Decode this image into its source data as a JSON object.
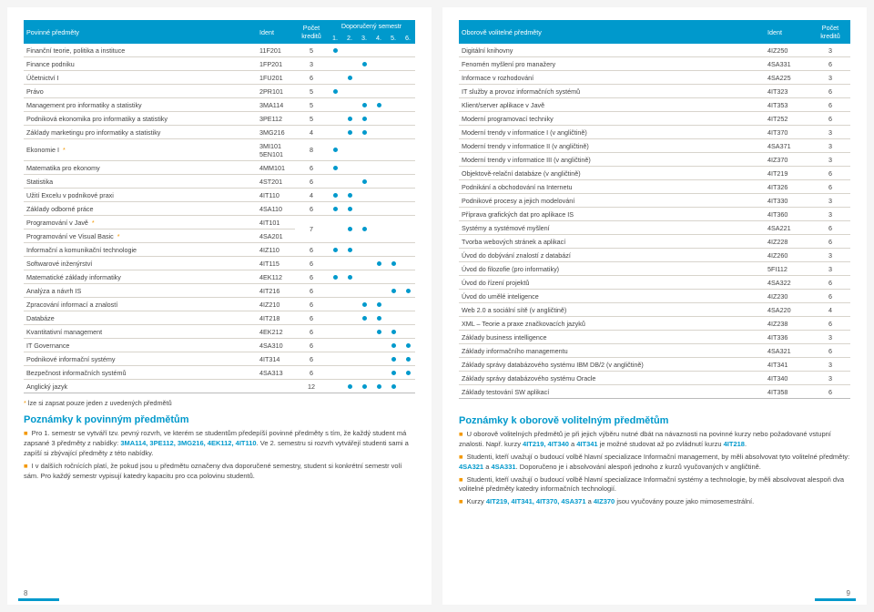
{
  "left": {
    "headers": {
      "subject": "Povinné předměty",
      "ident": "Ident",
      "credits": "Počet kreditů",
      "recommended": "Doporučený semestr",
      "sems": [
        "1.",
        "2.",
        "3.",
        "4.",
        "5.",
        "6."
      ]
    },
    "rows": [
      {
        "name": "Finanční teorie, politika a instituce",
        "ident": "11F201",
        "cr": "5",
        "s": [
          "●",
          "",
          "",
          "",
          "",
          ""
        ]
      },
      {
        "name": "Finance podniku",
        "ident": "1FP201",
        "cr": "3",
        "s": [
          "",
          "",
          "●",
          "",
          "",
          ""
        ]
      },
      {
        "name": "Účetnictví I",
        "ident": "1FU201",
        "cr": "6",
        "s": [
          "",
          "●",
          "",
          "",
          "",
          ""
        ]
      },
      {
        "name": "Právo",
        "ident": "2PR101",
        "cr": "5",
        "s": [
          "●",
          "",
          "",
          "",
          "",
          ""
        ]
      },
      {
        "name": "Management pro informatiky a statistiky",
        "ident": "3MA114",
        "cr": "5",
        "s": [
          "",
          "",
          "●",
          "●",
          "",
          ""
        ]
      },
      {
        "name": "Podniková ekonomika pro informatiky a statistiky",
        "ident": "3PE112",
        "cr": "5",
        "s": [
          "",
          "●",
          "●",
          "",
          "",
          ""
        ]
      },
      {
        "name": "Základy marketingu pro informatiky a statistiky",
        "ident": "3MG216",
        "cr": "4",
        "s": [
          "",
          "●",
          "●",
          "",
          "",
          ""
        ]
      },
      {
        "name": "Ekonomie I *",
        "ident": "3MI101\n5EN101",
        "cr": "8",
        "s": [
          "●",
          "",
          "",
          "",
          "",
          ""
        ]
      },
      {
        "name": "Matematika pro ekonomy",
        "ident": "4MM101",
        "cr": "6",
        "s": [
          "●",
          "",
          "",
          "",
          "",
          ""
        ]
      },
      {
        "name": "Statistika",
        "ident": "4ST201",
        "cr": "6",
        "s": [
          "",
          "",
          "●",
          "",
          "",
          ""
        ]
      },
      {
        "name": "Užití Excelu v podnikové praxi",
        "ident": "4IT110",
        "cr": "4",
        "s": [
          "●",
          "●",
          "",
          "",
          "",
          ""
        ]
      },
      {
        "name": "Základy odborné práce",
        "ident": "4SA110",
        "cr": "6",
        "s": [
          "●",
          "●",
          "",
          "",
          "",
          ""
        ]
      },
      {
        "name": "Programování v Javě *",
        "ident": "4IT101",
        "cr": "",
        "s": [
          "",
          "",
          "",
          "",
          "",
          ""
        ]
      },
      {
        "name": "Programování ve Visual Basic *",
        "ident": "4SA201",
        "cr": "7",
        "s": [
          "",
          "●",
          "●",
          "",
          "",
          ""
        ],
        "merge": true
      },
      {
        "name": "Informační a komunikační technologie",
        "ident": "4IZ110",
        "cr": "6",
        "s": [
          "●",
          "●",
          "",
          "",
          "",
          ""
        ]
      },
      {
        "name": "Softwarové inženýrství",
        "ident": "4IT115",
        "cr": "6",
        "s": [
          "",
          "",
          "",
          "●",
          "●",
          ""
        ]
      },
      {
        "name": "Matematické základy informatiky",
        "ident": "4EK112",
        "cr": "6",
        "s": [
          "●",
          "●",
          "",
          "",
          "",
          ""
        ]
      },
      {
        "name": "Analýza a návrh IS",
        "ident": "4IT216",
        "cr": "6",
        "s": [
          "",
          "",
          "",
          "",
          "●",
          "●"
        ]
      },
      {
        "name": "Zpracování informací a znalostí",
        "ident": "4IZ210",
        "cr": "6",
        "s": [
          "",
          "",
          "●",
          "●",
          "",
          ""
        ]
      },
      {
        "name": "Databáze",
        "ident": "4IT218",
        "cr": "6",
        "s": [
          "",
          "",
          "●",
          "●",
          "",
          ""
        ]
      },
      {
        "name": "Kvantitativní management",
        "ident": "4EK212",
        "cr": "6",
        "s": [
          "",
          "",
          "",
          "●",
          "●",
          ""
        ]
      },
      {
        "name": "IT Governance",
        "ident": "4SA310",
        "cr": "6",
        "s": [
          "",
          "",
          "",
          "",
          "●",
          "●"
        ]
      },
      {
        "name": "Podnikové informační systémy",
        "ident": "4IT314",
        "cr": "6",
        "s": [
          "",
          "",
          "",
          "",
          "●",
          "●"
        ]
      },
      {
        "name": "Bezpečnost informačních systémů",
        "ident": "4SA313",
        "cr": "6",
        "s": [
          "",
          "",
          "",
          "",
          "●",
          "●"
        ]
      },
      {
        "name": "Anglický jazyk",
        "ident": "",
        "cr": "12",
        "s": [
          "",
          "●",
          "●",
          "●",
          "●",
          ""
        ]
      }
    ],
    "footnote": "* lze si zapsat pouze jeden z uvedených předmětů",
    "notesTitle": "Poznámky k povinným předmětům",
    "notes": [
      "Pro 1. semestr se vytváří tzv. pevný rozvrh, ve kterém se studentům předepíší povinné předměty s tím, že každý student má zapsané 3 předměty z nabídky: <b>3MA114, 3PE112, 3MG216, 4EK112, 4IT110</b>. Ve 2. semestru si rozvrh vytvářejí studenti sami a zapíší si zbývající předměty z této nabídky.",
      "I v dalších ročnících platí, že pokud jsou u předmětu označeny dva doporučené semestry, student si konkrétní semestr volí sám. Pro každý semestr vypisují katedry kapacitu pro cca polovinu studentů."
    ],
    "pageNum": "8"
  },
  "right": {
    "headers": {
      "subject": "Oborově volitelné předměty",
      "ident": "Ident",
      "credits": "Počet kreditů"
    },
    "rows": [
      {
        "name": "Digitální knihovny",
        "ident": "4IZ250",
        "cr": "3"
      },
      {
        "name": "Fenomén myšlení pro manažery",
        "ident": "4SA331",
        "cr": "6"
      },
      {
        "name": "Informace v rozhodování",
        "ident": "4SA225",
        "cr": "3"
      },
      {
        "name": "IT služby a provoz informačních systémů",
        "ident": "4IT323",
        "cr": "6"
      },
      {
        "name": "Klient/server aplikace v Javě",
        "ident": "4IT353",
        "cr": "6"
      },
      {
        "name": "Moderní programovací techniky",
        "ident": "4IT252",
        "cr": "6"
      },
      {
        "name": "Moderní trendy v informatice I (v angličtině)",
        "ident": "4IT370",
        "cr": "3"
      },
      {
        "name": "Moderní trendy v informatice II (v angličtině)",
        "ident": "4SA371",
        "cr": "3"
      },
      {
        "name": "Moderní trendy v informatice III (v angličtině)",
        "ident": "4IZ370",
        "cr": "3"
      },
      {
        "name": "Objektově-relační databáze (v angličtině)",
        "ident": "4IT219",
        "cr": "6"
      },
      {
        "name": "Podnikání a obchodování na Internetu",
        "ident": "4IT326",
        "cr": "6"
      },
      {
        "name": "Podnikové procesy a jejich modelování",
        "ident": "4IT330",
        "cr": "3"
      },
      {
        "name": "Příprava grafických dat pro aplikace IS",
        "ident": "4IT360",
        "cr": "3"
      },
      {
        "name": "Systémy a systémové myšlení",
        "ident": "4SA221",
        "cr": "6"
      },
      {
        "name": "Tvorba webových stránek a aplikací",
        "ident": "4IZ228",
        "cr": "6"
      },
      {
        "name": "Úvod do dobývání znalostí z databází",
        "ident": "4IZ260",
        "cr": "3"
      },
      {
        "name": "Úvod do filozofie (pro informatiky)",
        "ident": "5FI112",
        "cr": "3"
      },
      {
        "name": "Úvod do řízení projektů",
        "ident": "4SA322",
        "cr": "6"
      },
      {
        "name": "Úvod do umělé inteligence",
        "ident": "4IZ230",
        "cr": "6"
      },
      {
        "name": "Web 2.0 a sociální sítě (v angličtině)",
        "ident": "4SA220",
        "cr": "4"
      },
      {
        "name": "XML – Teorie a praxe značkovacích jazyků",
        "ident": "4IZ238",
        "cr": "6"
      },
      {
        "name": "Základy business intelligence",
        "ident": "4IT336",
        "cr": "3"
      },
      {
        "name": "Základy informačního managementu",
        "ident": "4SA321",
        "cr": "6"
      },
      {
        "name": "Základy správy databázového systému IBM DB/2 (v angličtině)",
        "ident": "4IT341",
        "cr": "3"
      },
      {
        "name": "Základy správy databázového systému Oracle",
        "ident": "4IT340",
        "cr": "3"
      },
      {
        "name": "Základy testování SW aplikací",
        "ident": "4IT358",
        "cr": "6"
      }
    ],
    "notesTitle": "Poznámky k oborově volitelným předmětům",
    "notes": [
      "U oborově volitelných předmětů je při jejich výběru nutné dbát na návaznosti na povinné kurzy nebo požadované vstupní znalosti. Např. kurzy <b>4IT219, 4IT340</b> a <b>4IT341</b> je možné studovat až po zvládnutí kurzu <b>4IT218</b>.",
      "Studenti, kteří uvažují o budoucí volbě hlavní specializace Informační management, by měli absolvovat tyto volitelné předměty: <b>4SA321</b> a <b>4SA331</b>. Doporučeno je i absolvování alespoň jednoho z kurzů vyučovaných v angličtině.",
      "Studenti, kteří uvažují o budoucí volbě hlavní specializace Informační systémy a technologie, by měli absolvovat alespoň dva volitelné předměty katedry informačních technologií.",
      "Kurzy <b>4IT219, 4IT341, 4IT370, 4SA371</b> a <b>4IZ370</b> jsou vyučovány pouze jako mimosemestrální."
    ],
    "pageNum": "9"
  },
  "colors": {
    "accent": "#0099cc",
    "orange": "#f39800"
  }
}
